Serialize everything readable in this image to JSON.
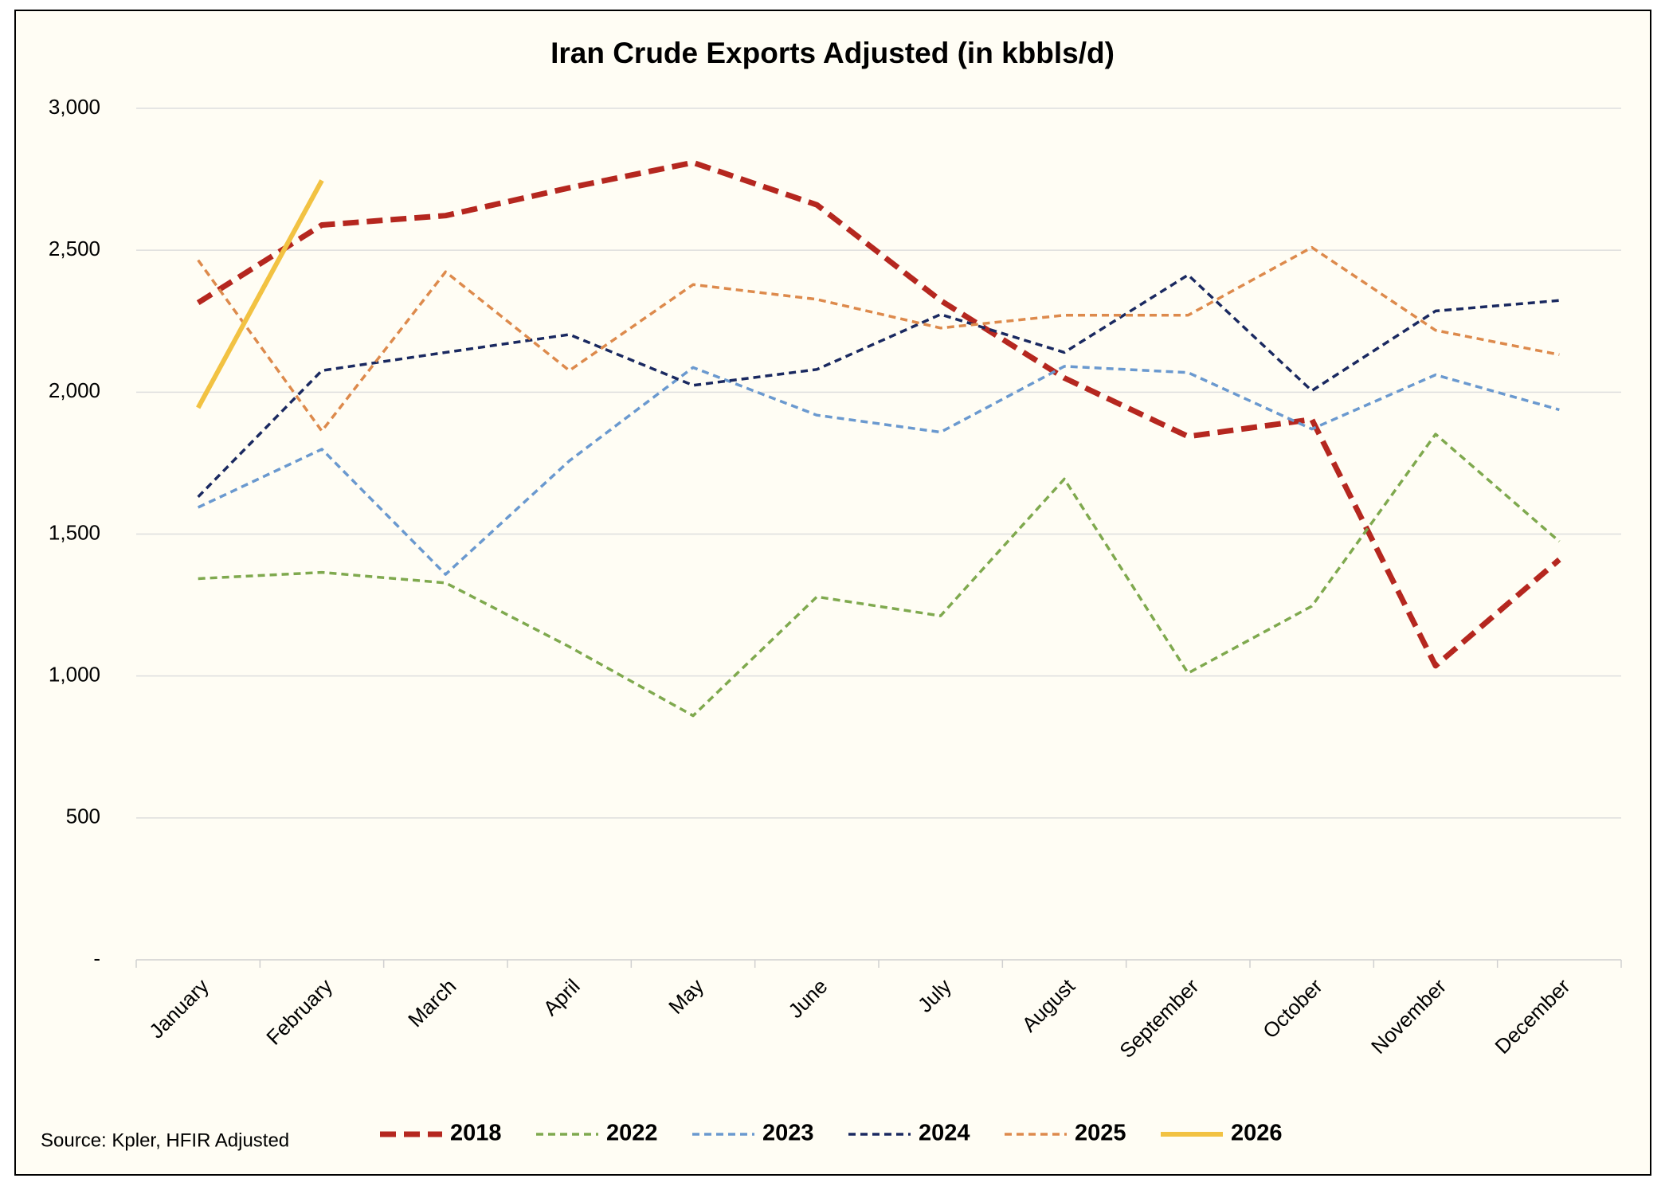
{
  "chart_data": {
    "type": "line",
    "title": "Iran Crude Exports Adjusted (in kbbls/d)",
    "source": "Source: Kpler, HFIR Adjusted",
    "categories": [
      "January",
      "February",
      "March",
      "April",
      "May",
      "June",
      "July",
      "August",
      "September",
      "October",
      "November",
      "December"
    ],
    "series": [
      {
        "name": "2018",
        "color": "#b5271f",
        "line_style": "dashed",
        "values": [
          2315,
          2589,
          2622,
          2720,
          2809,
          2660,
          2323,
          2050,
          1844,
          1904,
          1036,
          1410
        ]
      },
      {
        "name": "2022",
        "color": "#7fa94e",
        "line_style": "dashed",
        "values": [
          1343,
          1365,
          1328,
          1103,
          860,
          1279,
          1212,
          1694,
          1010,
          1246,
          1852,
          1474
        ]
      },
      {
        "name": "2023",
        "color": "#6a99cf",
        "line_style": "dashed",
        "values": [
          1594,
          1799,
          1358,
          1758,
          2087,
          1919,
          1859,
          2091,
          2069,
          1870,
          2061,
          1938
        ]
      },
      {
        "name": "2024",
        "color": "#1a2960",
        "line_style": "dashed",
        "values": [
          1631,
          2076,
          2140,
          2203,
          2024,
          2080,
          2274,
          2140,
          2413,
          2005,
          2286,
          2323
        ]
      },
      {
        "name": "2025",
        "color": "#dd8a4c",
        "line_style": "dashed",
        "values": [
          2465,
          1863,
          2424,
          2076,
          2379,
          2327,
          2226,
          2271,
          2271,
          2510,
          2218,
          2132
        ]
      },
      {
        "name": "2026",
        "color": "#f2c242",
        "line_style": "solid",
        "values": [
          1945,
          2746,
          null,
          null,
          null,
          null,
          null,
          null,
          null,
          null,
          null,
          null
        ]
      }
    ],
    "ylim": [
      0,
      3000
    ],
    "yticks": [
      {
        "value": 0,
        "label": "-"
      },
      500,
      {
        "value": 1000,
        "label": "1,000"
      },
      {
        "value": 1500,
        "label": "1,500"
      },
      {
        "value": 2000,
        "label": "2,000"
      },
      {
        "value": 2500,
        "label": "2,500"
      },
      {
        "value": 3000,
        "label": "3,000"
      }
    ],
    "grid": true,
    "legend": "bottom"
  }
}
